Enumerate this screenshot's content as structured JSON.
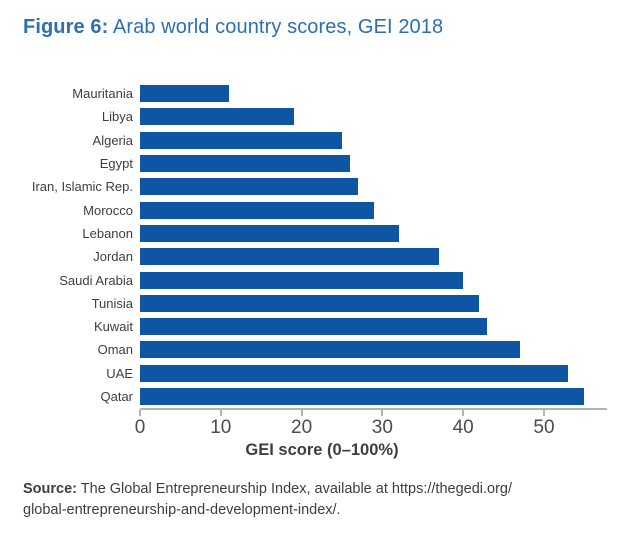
{
  "title": {
    "prefix": "Figure 6:",
    "text": " Arab world country scores, GEI 2018"
  },
  "chart_data": {
    "type": "bar",
    "orientation": "horizontal",
    "title": "Figure 6: Arab world country scores, GEI 2018",
    "categories": [
      "Mauritania",
      "Libya",
      "Algeria",
      "Egypt",
      "Iran, Islamic Rep.",
      "Morocco",
      "Lebanon",
      "Jordan",
      "Saudi Arabia",
      "Tunisia",
      "Kuwait",
      "Oman",
      "UAE",
      "Qatar"
    ],
    "values": [
      11,
      19,
      25,
      26,
      27,
      29,
      32,
      37,
      40,
      42,
      43,
      47,
      53,
      55
    ],
    "xlabel": "GEI score (0–100%)",
    "ylabel": "",
    "xticks": [
      0,
      10,
      20,
      30,
      40,
      50
    ],
    "xlim": [
      0,
      57.8
    ],
    "grid": false,
    "legend": false,
    "bar_color": "#0E56A3"
  },
  "source": {
    "label": "Source:",
    "line1": " The Global Entrepreneurship Index, available at https://thegedi.org/",
    "line2": "global-entrepreneurship-and-development-index/."
  },
  "colors": {
    "title_blue": "#2D6EB5",
    "bar_blue": "#0E56A3",
    "text_dark": "#3E3E3D",
    "axis_gray": "#B3B3B3"
  }
}
